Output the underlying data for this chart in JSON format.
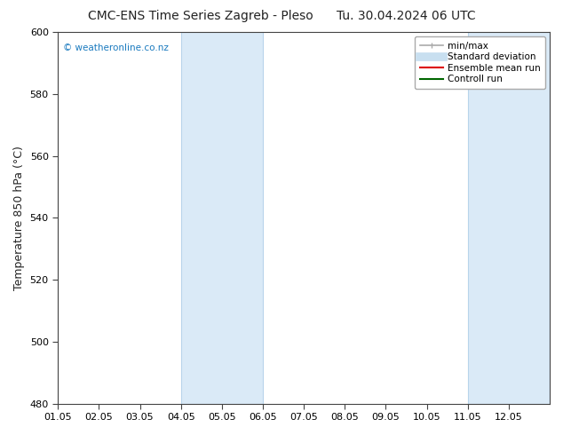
{
  "title_left": "CMC-ENS Time Series Zagreb - Pleso",
  "title_right": "Tu. 30.04.2024 06 UTC",
  "ylabel": "Temperature 850 hPa (°C)",
  "xlim": [
    0,
    12
  ],
  "ylim": [
    480,
    600
  ],
  "yticks": [
    480,
    500,
    520,
    540,
    560,
    580,
    600
  ],
  "xtick_labels": [
    "01.05",
    "02.05",
    "03.05",
    "04.05",
    "05.05",
    "06.05",
    "07.05",
    "08.05",
    "09.05",
    "10.05",
    "11.05",
    "12.05"
  ],
  "xtick_positions": [
    0,
    1,
    2,
    3,
    4,
    5,
    6,
    7,
    8,
    9,
    10,
    11
  ],
  "shaded_bands": [
    {
      "x_start": 3,
      "x_end": 5,
      "color": "#daeaf7"
    },
    {
      "x_start": 10,
      "x_end": 12,
      "color": "#daeaf7"
    }
  ],
  "vertical_lines": [
    {
      "x": 3,
      "color": "#b8d4eb",
      "lw": 0.8
    },
    {
      "x": 5,
      "color": "#b8d4eb",
      "lw": 0.8
    },
    {
      "x": 10,
      "color": "#b8d4eb",
      "lw": 0.8
    },
    {
      "x": 12,
      "color": "#b8d4eb",
      "lw": 0.8
    }
  ],
  "watermark_text": "© weatheronline.co.nz",
  "watermark_color": "#1a7abf",
  "legend_items": [
    {
      "label": "min/max",
      "color": "#aaaaaa",
      "lw": 1.2,
      "style": "line_with_caps"
    },
    {
      "label": "Standard deviation",
      "color": "#c8dff0",
      "lw": 7,
      "style": "line"
    },
    {
      "label": "Ensemble mean run",
      "color": "#dd0000",
      "lw": 1.5,
      "style": "line"
    },
    {
      "label": "Controll run",
      "color": "#006600",
      "lw": 1.5,
      "style": "line"
    }
  ],
  "bg_color": "#ffffff",
  "spine_color": "#444444",
  "tick_color": "#444444",
  "title_fontsize": 10,
  "tick_fontsize": 8,
  "ylabel_fontsize": 9
}
